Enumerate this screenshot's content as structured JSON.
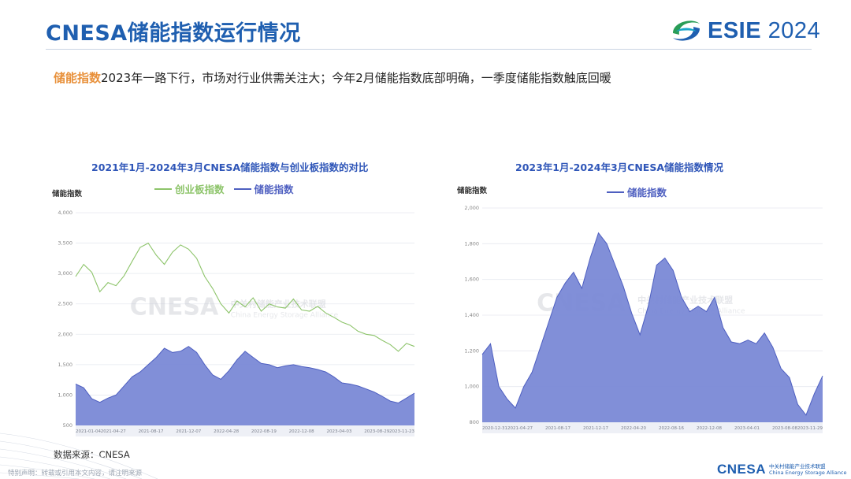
{
  "slide": {
    "title": "CNESA储能指数运行情况",
    "subtitle_highlight": "储能指数",
    "subtitle_rest": "2023年一路下行，市场对行业供需关注大；今年2月储能指数底部明确，一季度储能指数触底回暖"
  },
  "brand": {
    "name_bold": "ESIE",
    "name_year": "2024"
  },
  "footer": {
    "source": "数据来源：CNESA",
    "disclaimer": "特别声明：转载或引用本文内容，请注明来源",
    "logo_word": "CNESA",
    "logo_cn": "中关村储能产业技术联盟",
    "logo_en": "China Energy Storage Alliance"
  },
  "watermark": {
    "word": "CNESA",
    "cn": "中关村储能产业技术联盟",
    "en": "China Energy Storage Alliance"
  },
  "colors": {
    "title_blue": "#1f5fb0",
    "highlight_orange": "#e8903a",
    "chart_fill": "#7a89d6",
    "chart_line": "#4e5fc0",
    "chinext_green": "#8dc46a"
  },
  "chart_data": [
    {
      "type": "area",
      "title": "2021年1月-2024年3月CNESA储能指数与创业板指数的对比",
      "ylabel": "储能指数",
      "ylim": [
        500,
        4000
      ],
      "yticks": [
        "500",
        "1,000",
        "1,500",
        "2,000",
        "2,500",
        "3,000",
        "3,500",
        "4,000"
      ],
      "xticks": [
        "2021-01-04",
        "2021-04-27",
        "2021-08-17",
        "2021-12-07",
        "2022-04-28",
        "2022-08-19",
        "2022-12-08",
        "2023-04-03",
        "2023-08-29",
        "2023-11-23"
      ],
      "series": [
        {
          "name": "创业板指数",
          "color": "#8dc46a",
          "values": [
            2950,
            3150,
            3020,
            2700,
            2850,
            2800,
            2960,
            3200,
            3430,
            3500,
            3300,
            3150,
            3350,
            3470,
            3400,
            3250,
            2950,
            2750,
            2500,
            2350,
            2550,
            2450,
            2600,
            2380,
            2500,
            2450,
            2430,
            2580,
            2400,
            2380,
            2460,
            2350,
            2280,
            2200,
            2150,
            2050,
            2000,
            1980,
            1900,
            1830,
            1720,
            1850,
            1800
          ]
        },
        {
          "name": "储能指数",
          "color": "#7a89d6",
          "values": [
            1180,
            1120,
            940,
            880,
            950,
            1000,
            1150,
            1300,
            1380,
            1500,
            1620,
            1770,
            1700,
            1720,
            1800,
            1700,
            1500,
            1330,
            1260,
            1400,
            1580,
            1720,
            1620,
            1520,
            1500,
            1450,
            1480,
            1500,
            1470,
            1450,
            1420,
            1380,
            1300,
            1200,
            1180,
            1150,
            1100,
            1050,
            980,
            900,
            870,
            950,
            1030
          ]
        }
      ]
    },
    {
      "type": "area",
      "title": "2023年1月-2024年3月CNESA储能指数情况",
      "ylabel": "储能指数",
      "ylim": [
        800,
        2000
      ],
      "yticks": [
        "800",
        "1,000",
        "1,200",
        "1,400",
        "1,600",
        "1,800",
        "2,000"
      ],
      "xticks": [
        "2020-12-31",
        "2021-04-27",
        "2021-08-17",
        "2021-12-17",
        "2022-04-20",
        "2022-08-16",
        "2022-12-08",
        "2023-04-01",
        "2023-08-08",
        "2023-11-29"
      ],
      "series": [
        {
          "name": "储能指数",
          "color": "#7a89d6",
          "values": [
            1180,
            1240,
            1000,
            930,
            880,
            1000,
            1080,
            1220,
            1360,
            1500,
            1580,
            1640,
            1550,
            1720,
            1860,
            1800,
            1680,
            1560,
            1410,
            1290,
            1450,
            1680,
            1720,
            1650,
            1500,
            1420,
            1450,
            1420,
            1500,
            1330,
            1250,
            1240,
            1260,
            1240,
            1300,
            1220,
            1100,
            1050,
            900,
            840,
            960,
            1060
          ]
        }
      ]
    }
  ]
}
